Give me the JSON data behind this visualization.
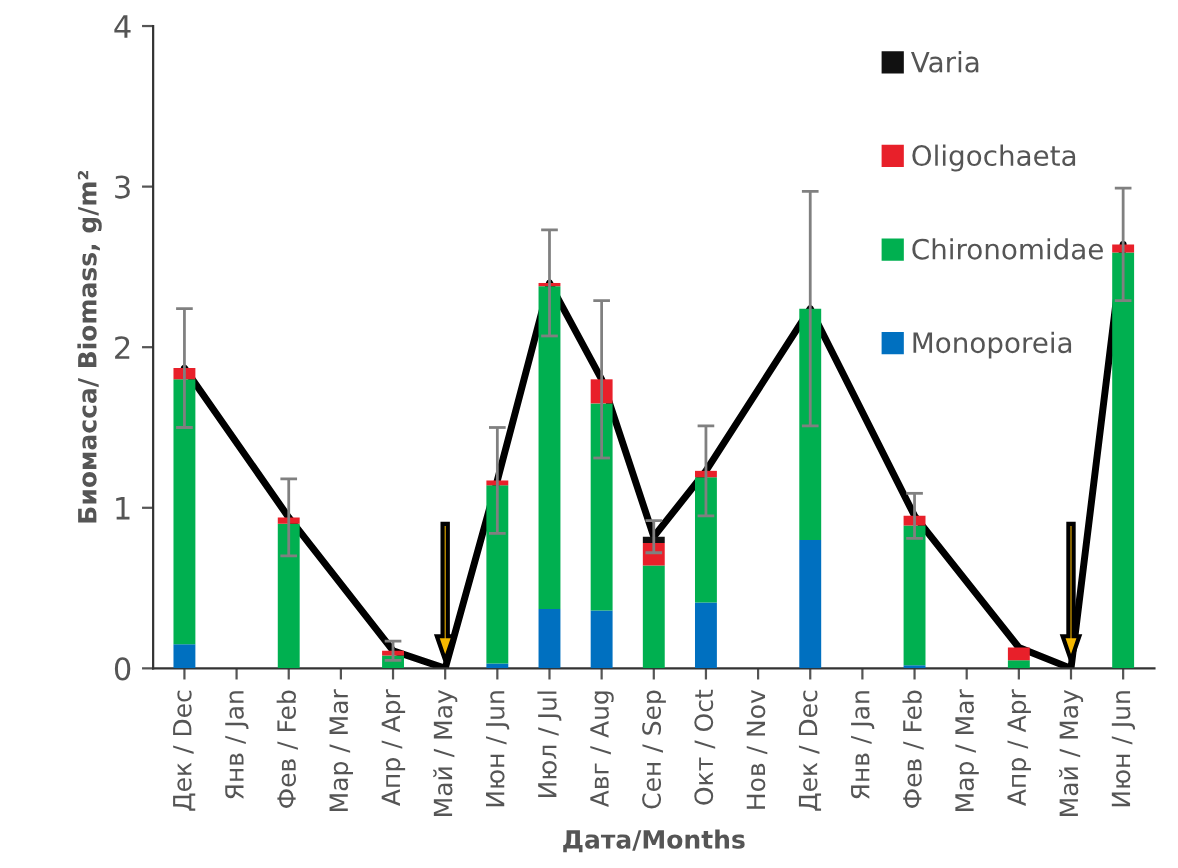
{
  "chart_data": {
    "type": "bar",
    "stacked": true,
    "xlabel": "Дата/Months",
    "ylabel": "Биомасса/ Biomass, g/m²",
    "categories": [
      "Дек / Dec",
      "Янв / Jan",
      "Фев / Feb",
      "Мар / Mar",
      "Апр / Apr",
      "Май / May",
      "Июн / Jun",
      "Июл / Jul",
      "Авг / Aug",
      "Сен / Sep",
      "Окт / Oct",
      "Нов / Nov",
      "Дек / Dec",
      "Янв / Jan",
      "Фев / Feb",
      "Мар / Mar",
      "Апр / Apr",
      "Май / May",
      "Июн / Jun"
    ],
    "series": [
      {
        "name": "Monoporeia",
        "color": "#0070c0",
        "values": [
          0.15,
          null,
          null,
          null,
          null,
          null,
          0.03,
          0.37,
          0.36,
          null,
          0.41,
          null,
          0.8,
          null,
          0.02,
          null,
          null,
          null,
          null
        ]
      },
      {
        "name": "Chironomidae",
        "color": "#00b050",
        "values": [
          1.65,
          null,
          0.9,
          null,
          0.08,
          null,
          1.11,
          2.01,
          1.29,
          0.64,
          0.78,
          null,
          1.44,
          null,
          0.87,
          null,
          0.05,
          null,
          2.59
        ]
      },
      {
        "name": "Oligochaeta",
        "color": "#e8202a",
        "values": [
          0.07,
          null,
          0.04,
          null,
          0.03,
          null,
          0.03,
          0.02,
          0.15,
          0.14,
          0.04,
          null,
          null,
          null,
          0.06,
          null,
          0.08,
          null,
          0.05
        ]
      },
      {
        "name": "Varia",
        "color": "#111111",
        "values": [
          null,
          null,
          null,
          null,
          null,
          null,
          null,
          null,
          null,
          0.04,
          null,
          null,
          null,
          null,
          null,
          null,
          null,
          null,
          null
        ]
      },
      {
        "type": "line",
        "color": "#000000",
        "values": [
          1.87,
          null,
          0.94,
          null,
          0.11,
          0,
          1.17,
          2.4,
          1.8,
          0.82,
          1.23,
          null,
          2.24,
          null,
          0.95,
          null,
          0.13,
          0,
          2.64
        ],
        "errors": [
          0.37,
          null,
          0.24,
          null,
          0.06,
          null,
          0.33,
          0.33,
          0.49,
          0.1,
          0.28,
          null,
          0.73,
          null,
          0.14,
          null,
          null,
          null,
          0.35
        ]
      }
    ],
    "ylim": [
      0,
      4
    ],
    "yticks": [
      0,
      1,
      2,
      3,
      4
    ],
    "grid": false,
    "legend": "top right"
  }
}
